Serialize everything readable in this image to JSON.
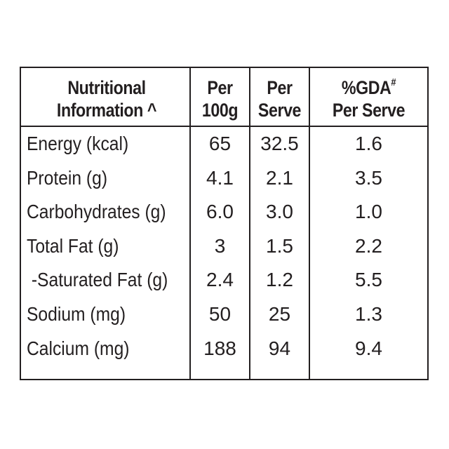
{
  "header": {
    "col0_line1": "Nutritional",
    "col0_line2": "Information ^",
    "col1_line1": "Per",
    "col1_line2": "100g",
    "col2_line1": "Per",
    "col2_line2": "Serve",
    "col3_line1": "%GDA",
    "col3_sup": "#",
    "col3_line2": "Per Serve"
  },
  "rows": [
    {
      "label": "Energy (kcal)",
      "per100g": "65",
      "perServe": "32.5",
      "gda": "1.6"
    },
    {
      "label": "Protein (g)",
      "per100g": "4.1",
      "perServe": "2.1",
      "gda": "3.5"
    },
    {
      "label": "Carbohydrates (g)",
      "per100g": "6.0",
      "perServe": "3.0",
      "gda": "1.0"
    },
    {
      "label": "Total Fat (g)",
      "per100g": "3",
      "perServe": "1.5",
      "gda": "2.2"
    },
    {
      "label": " -Saturated Fat (g)",
      "per100g": "2.4",
      "perServe": "1.2",
      "gda": "5.5"
    },
    {
      "label": "Sodium (mg)",
      "per100g": "50",
      "perServe": "25",
      "gda": "1.3"
    },
    {
      "label": "Calcium (mg)",
      "per100g": "188",
      "perServe": "94",
      "gda": "9.4"
    }
  ]
}
